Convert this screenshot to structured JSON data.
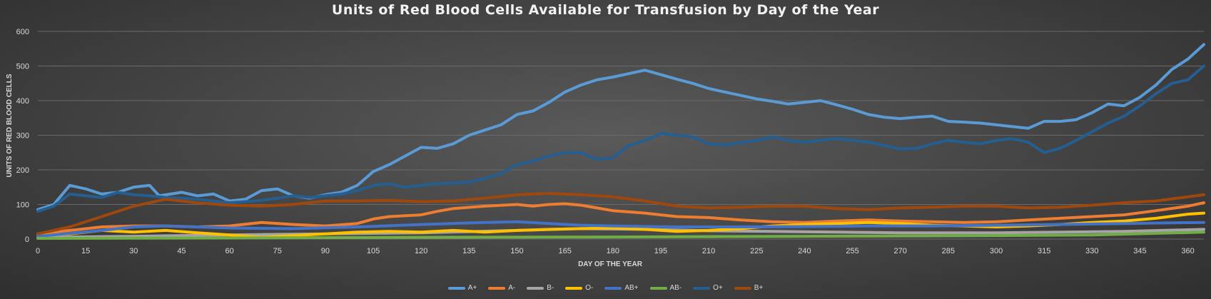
{
  "chart_data": {
    "type": "line",
    "title": "Units of Red Blood Cells Available for Transfusion by Day of the Year",
    "xlabel": "DAY OF THE YEAR",
    "ylabel": "UNITS OF RED BLOOD CELLS",
    "xlim": [
      0,
      365
    ],
    "ylim": [
      0,
      600
    ],
    "x_ticks": [
      0,
      15,
      30,
      45,
      60,
      75,
      90,
      105,
      120,
      135,
      150,
      165,
      180,
      195,
      210,
      225,
      240,
      255,
      270,
      285,
      300,
      315,
      330,
      345,
      360
    ],
    "y_ticks": [
      0,
      100,
      200,
      300,
      400,
      500,
      600
    ],
    "grid": true,
    "legend_position": "bottom",
    "series": [
      {
        "name": "A+",
        "color": "#5b9bd5",
        "points": [
          [
            0,
            85
          ],
          [
            5,
            100
          ],
          [
            10,
            155
          ],
          [
            15,
            145
          ],
          [
            20,
            130
          ],
          [
            25,
            135
          ],
          [
            30,
            150
          ],
          [
            35,
            155
          ],
          [
            38,
            125
          ],
          [
            45,
            135
          ],
          [
            50,
            125
          ],
          [
            55,
            130
          ],
          [
            60,
            110
          ],
          [
            65,
            115
          ],
          [
            70,
            140
          ],
          [
            75,
            145
          ],
          [
            80,
            125
          ],
          [
            85,
            118
          ],
          [
            90,
            128
          ],
          [
            95,
            135
          ],
          [
            100,
            155
          ],
          [
            105,
            195
          ],
          [
            110,
            215
          ],
          [
            115,
            240
          ],
          [
            120,
            265
          ],
          [
            125,
            262
          ],
          [
            130,
            275
          ],
          [
            135,
            300
          ],
          [
            140,
            315
          ],
          [
            145,
            330
          ],
          [
            150,
            360
          ],
          [
            155,
            370
          ],
          [
            160,
            395
          ],
          [
            165,
            425
          ],
          [
            170,
            445
          ],
          [
            175,
            460
          ],
          [
            180,
            468
          ],
          [
            185,
            478
          ],
          [
            190,
            488
          ],
          [
            195,
            475
          ],
          [
            200,
            462
          ],
          [
            205,
            450
          ],
          [
            210,
            435
          ],
          [
            215,
            425
          ],
          [
            220,
            415
          ],
          [
            225,
            405
          ],
          [
            230,
            398
          ],
          [
            235,
            390
          ],
          [
            240,
            395
          ],
          [
            245,
            400
          ],
          [
            250,
            388
          ],
          [
            255,
            375
          ],
          [
            260,
            360
          ],
          [
            265,
            352
          ],
          [
            270,
            348
          ],
          [
            275,
            352
          ],
          [
            280,
            355
          ],
          [
            285,
            340
          ],
          [
            290,
            338
          ],
          [
            295,
            335
          ],
          [
            300,
            330
          ],
          [
            305,
            325
          ],
          [
            310,
            320
          ],
          [
            315,
            340
          ],
          [
            320,
            340
          ],
          [
            325,
            345
          ],
          [
            330,
            365
          ],
          [
            335,
            390
          ],
          [
            340,
            385
          ],
          [
            345,
            410
          ],
          [
            350,
            445
          ],
          [
            355,
            490
          ],
          [
            360,
            520
          ],
          [
            365,
            562
          ]
        ]
      },
      {
        "name": "A-",
        "color": "#ed7d31",
        "points": [
          [
            0,
            15
          ],
          [
            10,
            25
          ],
          [
            20,
            35
          ],
          [
            30,
            38
          ],
          [
            40,
            38
          ],
          [
            50,
            35
          ],
          [
            60,
            38
          ],
          [
            70,
            48
          ],
          [
            80,
            42
          ],
          [
            90,
            38
          ],
          [
            100,
            45
          ],
          [
            105,
            58
          ],
          [
            110,
            65
          ],
          [
            120,
            70
          ],
          [
            125,
            80
          ],
          [
            130,
            88
          ],
          [
            140,
            95
          ],
          [
            150,
            100
          ],
          [
            155,
            95
          ],
          [
            160,
            100
          ],
          [
            165,
            102
          ],
          [
            170,
            98
          ],
          [
            175,
            90
          ],
          [
            180,
            82
          ],
          [
            190,
            75
          ],
          [
            195,
            70
          ],
          [
            200,
            65
          ],
          [
            210,
            62
          ],
          [
            220,
            55
          ],
          [
            230,
            50
          ],
          [
            240,
            48
          ],
          [
            250,
            52
          ],
          [
            260,
            55
          ],
          [
            270,
            52
          ],
          [
            280,
            50
          ],
          [
            290,
            48
          ],
          [
            300,
            50
          ],
          [
            310,
            55
          ],
          [
            320,
            60
          ],
          [
            330,
            65
          ],
          [
            340,
            70
          ],
          [
            350,
            82
          ],
          [
            360,
            95
          ],
          [
            365,
            105
          ]
        ]
      },
      {
        "name": "B-",
        "color": "#a5a5a5",
        "points": [
          [
            0,
            5
          ],
          [
            30,
            8
          ],
          [
            60,
            12
          ],
          [
            90,
            15
          ],
          [
            120,
            18
          ],
          [
            150,
            25
          ],
          [
            170,
            30
          ],
          [
            190,
            28
          ],
          [
            210,
            24
          ],
          [
            230,
            22
          ],
          [
            250,
            20
          ],
          [
            270,
            18
          ],
          [
            300,
            18
          ],
          [
            320,
            20
          ],
          [
            340,
            22
          ],
          [
            365,
            28
          ]
        ]
      },
      {
        "name": "O-",
        "color": "#ffc000",
        "points": [
          [
            0,
            10
          ],
          [
            10,
            15
          ],
          [
            20,
            25
          ],
          [
            30,
            20
          ],
          [
            40,
            25
          ],
          [
            50,
            18
          ],
          [
            60,
            12
          ],
          [
            70,
            5
          ],
          [
            80,
            10
          ],
          [
            90,
            15
          ],
          [
            100,
            20
          ],
          [
            110,
            22
          ],
          [
            120,
            20
          ],
          [
            130,
            25
          ],
          [
            140,
            20
          ],
          [
            150,
            25
          ],
          [
            160,
            28
          ],
          [
            170,
            30
          ],
          [
            180,
            32
          ],
          [
            190,
            28
          ],
          [
            200,
            22
          ],
          [
            210,
            25
          ],
          [
            220,
            30
          ],
          [
            230,
            38
          ],
          [
            240,
            42
          ],
          [
            250,
            45
          ],
          [
            260,
            48
          ],
          [
            270,
            45
          ],
          [
            280,
            40
          ],
          [
            290,
            38
          ],
          [
            300,
            35
          ],
          [
            310,
            38
          ],
          [
            320,
            42
          ],
          [
            330,
            48
          ],
          [
            340,
            52
          ],
          [
            350,
            60
          ],
          [
            360,
            72
          ],
          [
            365,
            75
          ]
        ]
      },
      {
        "name": "AB+",
        "color": "#4472c4",
        "points": [
          [
            0,
            8
          ],
          [
            20,
            25
          ],
          [
            30,
            35
          ],
          [
            40,
            38
          ],
          [
            60,
            32
          ],
          [
            80,
            30
          ],
          [
            100,
            35
          ],
          [
            120,
            42
          ],
          [
            140,
            48
          ],
          [
            150,
            50
          ],
          [
            160,
            45
          ],
          [
            170,
            40
          ],
          [
            180,
            38
          ],
          [
            200,
            35
          ],
          [
            220,
            35
          ],
          [
            240,
            36
          ],
          [
            260,
            38
          ],
          [
            280,
            38
          ],
          [
            300,
            40
          ],
          [
            320,
            42
          ],
          [
            340,
            45
          ],
          [
            365,
            48
          ]
        ]
      },
      {
        "name": "AB-",
        "color": "#70ad47",
        "points": [
          [
            0,
            2
          ],
          [
            60,
            3
          ],
          [
            120,
            5
          ],
          [
            180,
            6
          ],
          [
            240,
            8
          ],
          [
            300,
            10
          ],
          [
            330,
            12
          ],
          [
            365,
            20
          ]
        ]
      },
      {
        "name": "O+",
        "color": "#255e91",
        "points": [
          [
            0,
            80
          ],
          [
            5,
            95
          ],
          [
            10,
            130
          ],
          [
            15,
            125
          ],
          [
            20,
            120
          ],
          [
            25,
            135
          ],
          [
            30,
            128
          ],
          [
            35,
            125
          ],
          [
            40,
            120
          ],
          [
            45,
            118
          ],
          [
            50,
            115
          ],
          [
            55,
            110
          ],
          [
            60,
            105
          ],
          [
            65,
            108
          ],
          [
            70,
            112
          ],
          [
            75,
            118
          ],
          [
            80,
            125
          ],
          [
            85,
            120
          ],
          [
            90,
            125
          ],
          [
            95,
            130
          ],
          [
            100,
            140
          ],
          [
            105,
            155
          ],
          [
            110,
            160
          ],
          [
            115,
            150
          ],
          [
            120,
            155
          ],
          [
            125,
            160
          ],
          [
            130,
            162
          ],
          [
            135,
            165
          ],
          [
            140,
            175
          ],
          [
            145,
            190
          ],
          [
            150,
            215
          ],
          [
            155,
            225
          ],
          [
            160,
            240
          ],
          [
            165,
            250
          ],
          [
            170,
            250
          ],
          [
            175,
            230
          ],
          [
            180,
            235
          ],
          [
            185,
            270
          ],
          [
            190,
            285
          ],
          [
            195,
            305
          ],
          [
            200,
            300
          ],
          [
            205,
            295
          ],
          [
            210,
            275
          ],
          [
            215,
            272
          ],
          [
            220,
            278
          ],
          [
            225,
            285
          ],
          [
            230,
            295
          ],
          [
            235,
            285
          ],
          [
            240,
            280
          ],
          [
            245,
            285
          ],
          [
            250,
            290
          ],
          [
            255,
            285
          ],
          [
            260,
            280
          ],
          [
            265,
            270
          ],
          [
            270,
            260
          ],
          [
            275,
            262
          ],
          [
            280,
            275
          ],
          [
            285,
            285
          ],
          [
            290,
            280
          ],
          [
            295,
            275
          ],
          [
            300,
            285
          ],
          [
            305,
            290
          ],
          [
            310,
            280
          ],
          [
            315,
            250
          ],
          [
            320,
            262
          ],
          [
            325,
            285
          ],
          [
            330,
            310
          ],
          [
            335,
            335
          ],
          [
            340,
            355
          ],
          [
            345,
            385
          ],
          [
            350,
            420
          ],
          [
            355,
            450
          ],
          [
            360,
            460
          ],
          [
            365,
            500
          ]
        ]
      },
      {
        "name": "B+",
        "color": "#9e480e",
        "points": [
          [
            0,
            15
          ],
          [
            10,
            35
          ],
          [
            20,
            65
          ],
          [
            30,
            95
          ],
          [
            40,
            115
          ],
          [
            50,
            105
          ],
          [
            60,
            98
          ],
          [
            70,
            95
          ],
          [
            80,
            100
          ],
          [
            90,
            110
          ],
          [
            100,
            110
          ],
          [
            110,
            112
          ],
          [
            120,
            108
          ],
          [
            130,
            110
          ],
          [
            140,
            118
          ],
          [
            150,
            128
          ],
          [
            160,
            132
          ],
          [
            170,
            128
          ],
          [
            180,
            122
          ],
          [
            190,
            110
          ],
          [
            200,
            95
          ],
          [
            210,
            90
          ],
          [
            220,
            92
          ],
          [
            230,
            95
          ],
          [
            240,
            95
          ],
          [
            250,
            88
          ],
          [
            260,
            85
          ],
          [
            270,
            90
          ],
          [
            280,
            92
          ],
          [
            290,
            95
          ],
          [
            300,
            95
          ],
          [
            310,
            90
          ],
          [
            320,
            92
          ],
          [
            330,
            98
          ],
          [
            340,
            105
          ],
          [
            350,
            110
          ],
          [
            360,
            122
          ],
          [
            365,
            128
          ]
        ]
      }
    ]
  }
}
